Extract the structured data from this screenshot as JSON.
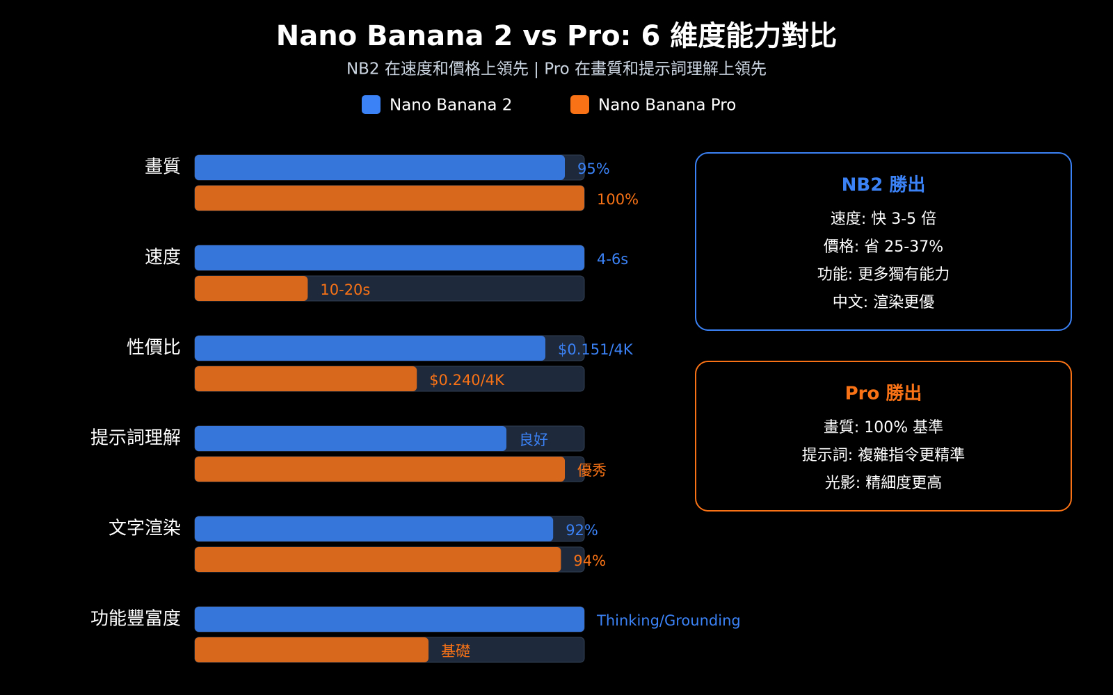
{
  "chart_data": {
    "type": "grouped-bar-horizontal",
    "title": "Nano Banana 2 vs Pro: 6 維度能力對比",
    "subtitle": "NB2 在速度和價格上領先 | Pro 在畫質和提示詞理解上領先",
    "categories": [
      "畫質",
      "速度",
      "性價比",
      "提示詞理解",
      "文字渲染",
      "功能豐富度"
    ],
    "xlim": [
      0,
      100
    ],
    "series": [
      {
        "name": "Nano Banana 2",
        "color": "#3b82f6",
        "values": [
          95,
          100,
          90,
          80,
          92,
          100
        ],
        "bar_texts": [
          "95%",
          "4-6s",
          "$0.151/4K",
          "良好",
          "92%",
          "Thinking/Grounding"
        ]
      },
      {
        "name": "Nano Banana Pro",
        "color": "#f97316",
        "values": [
          100,
          29,
          57,
          95,
          94,
          60
        ],
        "bar_texts": [
          "100%",
          "10-20s",
          "$0.240/4K",
          "優秀",
          "94%",
          "基礎"
        ]
      }
    ],
    "panels": [
      {
        "title": "NB2 勝出",
        "items": [
          "速度: 快 3-5 倍",
          "價格: 省 25-37%",
          "功能: 更多獨有能力",
          "中文: 渲染更優"
        ]
      },
      {
        "title": "Pro 勝出",
        "items": [
          "畫質: 100% 基準",
          "提示詞: 複雜指令更精準",
          "光影: 精細度更高"
        ]
      }
    ]
  }
}
